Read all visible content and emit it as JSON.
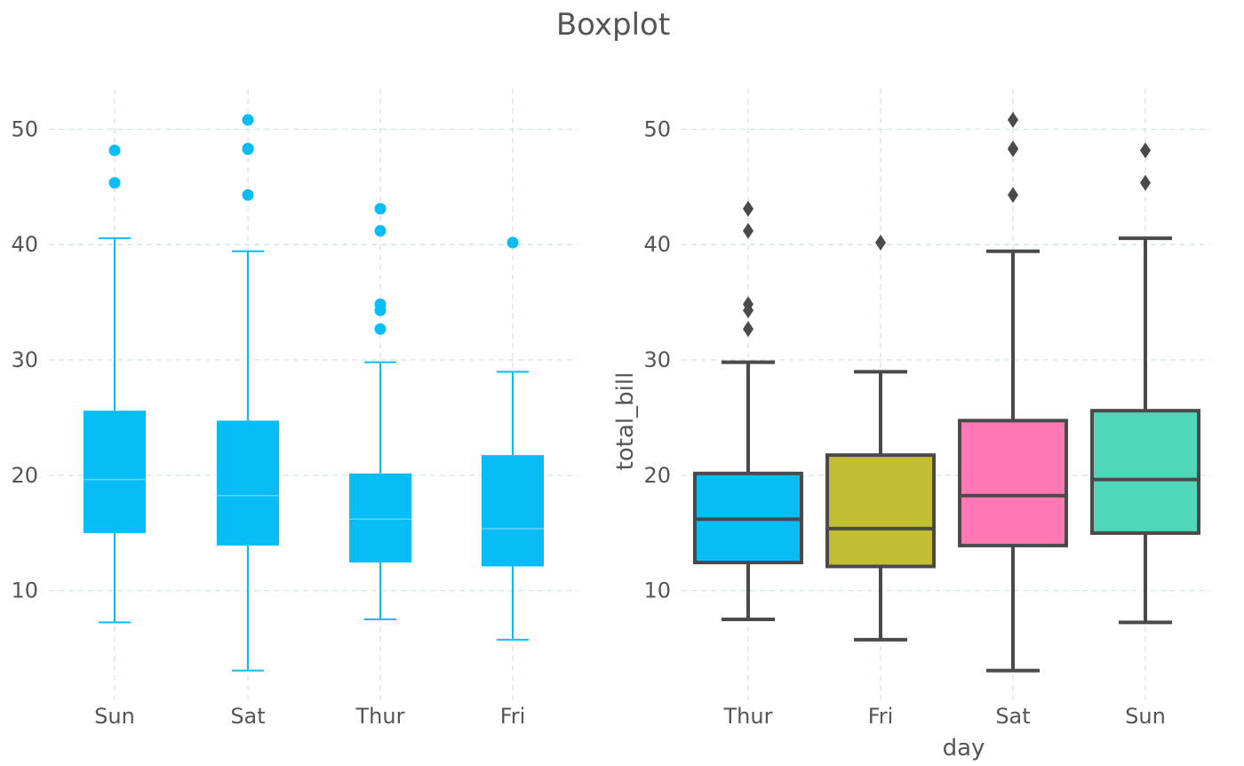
{
  "title": "Boxplot",
  "colors": {
    "grid": "#cfe3e3",
    "left_box": "#08bdf5",
    "left_median": "#5fd6f8",
    "right_line": "#4a4a4a"
  },
  "chart_data": [
    {
      "type": "box",
      "categories": [
        "Sun",
        "Sat",
        "Thur",
        "Fri"
      ],
      "ylim": [
        0.5,
        53.5
      ],
      "yticks": [
        10,
        20,
        30,
        40,
        50
      ],
      "xlabel": "",
      "ylabel": "",
      "grid": true,
      "boxes": [
        {
          "label": "Sun",
          "whislo": 7.25,
          "q1": 14.99,
          "med": 19.63,
          "q3": 25.6,
          "whishi": 40.55,
          "fliers": [
            45.35,
            48.17
          ]
        },
        {
          "label": "Sat",
          "whislo": 3.07,
          "q1": 13.91,
          "med": 18.24,
          "q3": 24.74,
          "whishi": 39.42,
          "fliers": [
            44.3,
            48.27,
            48.33,
            50.81
          ]
        },
        {
          "label": "Thur",
          "whislo": 7.51,
          "q1": 12.44,
          "med": 16.2,
          "q3": 20.16,
          "whishi": 29.8,
          "fliers": [
            32.68,
            34.3,
            34.83,
            41.19,
            43.11
          ]
        },
        {
          "label": "Fri",
          "whislo": 5.75,
          "q1": 12.1,
          "med": 15.38,
          "q3": 21.75,
          "whishi": 28.97,
          "fliers": [
            40.17
          ]
        }
      ]
    },
    {
      "type": "box",
      "categories": [
        "Thur",
        "Fri",
        "Sat",
        "Sun"
      ],
      "ylim": [
        0.5,
        53.5
      ],
      "yticks": [
        10,
        20,
        30,
        40,
        50
      ],
      "xlabel": "day",
      "ylabel": "total_bill",
      "grid": true,
      "boxes": [
        {
          "label": "Thur",
          "color": "#08bdf5",
          "whislo": 7.51,
          "q1": 12.44,
          "med": 16.2,
          "q3": 20.16,
          "whishi": 29.8,
          "fliers": [
            32.68,
            34.3,
            34.83,
            41.19,
            43.11
          ]
        },
        {
          "label": "Fri",
          "color": "#c2bd32",
          "whislo": 5.75,
          "q1": 12.1,
          "med": 15.38,
          "q3": 21.75,
          "whishi": 28.97,
          "fliers": [
            40.17
          ]
        },
        {
          "label": "Sat",
          "color": "#fe78b4",
          "whislo": 3.07,
          "q1": 13.91,
          "med": 18.24,
          "q3": 24.74,
          "whishi": 39.42,
          "fliers": [
            44.3,
            48.27,
            48.33,
            50.81
          ]
        },
        {
          "label": "Sun",
          "color": "#50d6b8",
          "whislo": 7.25,
          "q1": 14.99,
          "med": 19.63,
          "q3": 25.6,
          "whishi": 40.55,
          "fliers": [
            45.35,
            48.17
          ]
        }
      ]
    }
  ]
}
